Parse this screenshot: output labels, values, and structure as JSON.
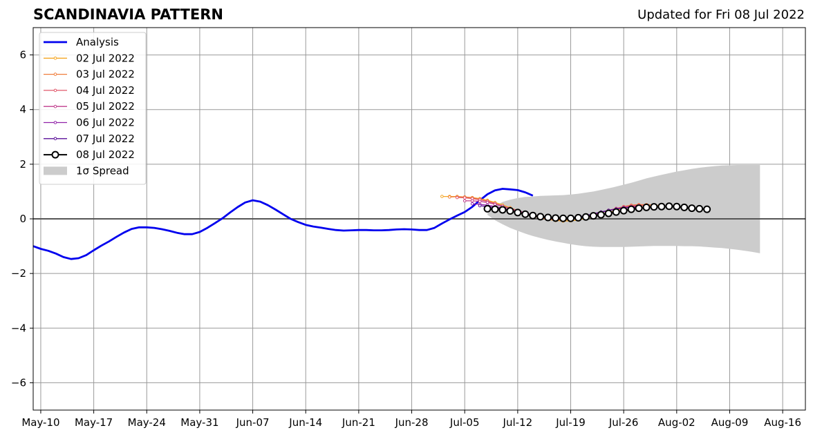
{
  "header": {
    "title": "SCANDINAVIA PATTERN",
    "subtitle": "Updated for Fri 08 Jul 2022"
  },
  "colors": {
    "analysis": "#0000ee",
    "spread": "#cccccc",
    "zero_line": "#555555",
    "grid": "#999999"
  },
  "chart_data": {
    "type": "line",
    "ylim": [
      -7,
      7
    ],
    "xlim": [
      "2022-05-09",
      "2022-08-19"
    ],
    "y_ticks": [
      -6,
      -4,
      -2,
      0,
      2,
      4,
      6
    ],
    "y_tick_labels": [
      "−6",
      "−4",
      "−2",
      "0",
      "2",
      "4",
      "6"
    ],
    "x_ticks": [
      "2022-05-10",
      "2022-05-17",
      "2022-05-24",
      "2022-05-31",
      "2022-06-07",
      "2022-06-14",
      "2022-06-21",
      "2022-06-28",
      "2022-07-05",
      "2022-07-12",
      "2022-07-19",
      "2022-07-26",
      "2022-08-02",
      "2022-08-09",
      "2022-08-16"
    ],
    "x_tick_labels": [
      "May-10",
      "May-17",
      "May-24",
      "May-31",
      "Jun-07",
      "Jun-14",
      "Jun-21",
      "Jun-28",
      "Jul-05",
      "Jul-12",
      "Jul-19",
      "Jul-26",
      "Aug-02",
      "Aug-09",
      "Aug-16"
    ],
    "grid": true,
    "legend_position": "top-left",
    "series": [
      {
        "name": "Analysis",
        "color": "#0000ee",
        "start": "2022-05-09",
        "values": [
          -1.0,
          -1.1,
          -1.17,
          -1.27,
          -1.4,
          -1.47,
          -1.44,
          -1.33,
          -1.15,
          -0.98,
          -0.83,
          -0.66,
          -0.5,
          -0.37,
          -0.31,
          -0.31,
          -0.33,
          -0.38,
          -0.44,
          -0.51,
          -0.56,
          -0.56,
          -0.48,
          -0.33,
          -0.16,
          0.02,
          0.23,
          0.43,
          0.6,
          0.68,
          0.63,
          0.5,
          0.34,
          0.17,
          0.0,
          -0.12,
          -0.22,
          -0.28,
          -0.32,
          -0.37,
          -0.41,
          -0.43,
          -0.42,
          -0.41,
          -0.41,
          -0.42,
          -0.42,
          -0.41,
          -0.39,
          -0.38,
          -0.39,
          -0.41,
          -0.41,
          -0.33,
          -0.17,
          -0.02,
          0.12,
          0.25,
          0.44,
          0.68,
          0.9,
          1.04,
          1.1,
          1.08,
          1.05,
          0.97,
          0.85
        ]
      },
      {
        "name": "02 Jul 2022",
        "color": "#f5a623",
        "start": "2022-07-02",
        "values": [
          0.82,
          0.82,
          0.82,
          0.8,
          0.78,
          0.74,
          0.68,
          0.6,
          0.51,
          0.41,
          0.3,
          0.19,
          0.1,
          0.03,
          -0.02,
          -0.06,
          -0.08,
          -0.07,
          -0.04,
          0.02,
          0.08,
          0.15,
          0.23,
          0.31,
          0.38,
          0.44,
          0.48,
          0.5,
          0.5,
          0.48
        ]
      },
      {
        "name": "03 Jul 2022",
        "color": "#f07c3a",
        "start": "2022-07-03",
        "values": [
          0.8,
          0.81,
          0.8,
          0.77,
          0.72,
          0.65,
          0.56,
          0.46,
          0.36,
          0.26,
          0.17,
          0.09,
          0.03,
          -0.02,
          -0.04,
          -0.04,
          -0.02,
          0.02,
          0.08,
          0.15,
          0.23,
          0.31,
          0.38,
          0.45,
          0.5,
          0.52,
          0.52,
          0.5
        ]
      },
      {
        "name": "04 Jul 2022",
        "color": "#e0576a",
        "start": "2022-07-04",
        "values": [
          0.78,
          0.77,
          0.74,
          0.7,
          0.64,
          0.56,
          0.47,
          0.38,
          0.29,
          0.21,
          0.13,
          0.07,
          0.02,
          -0.01,
          -0.01,
          0.01,
          0.05,
          0.1,
          0.17,
          0.24,
          0.31,
          0.38,
          0.44,
          0.48,
          0.5,
          0.49
        ]
      },
      {
        "name": "05 Jul 2022",
        "color": "#c03c8c",
        "start": "2022-07-05",
        "values": [
          0.66,
          0.66,
          0.64,
          0.6,
          0.53,
          0.46,
          0.38,
          0.3,
          0.22,
          0.15,
          0.09,
          0.04,
          0.01,
          0.0,
          0.02,
          0.06,
          0.11,
          0.17,
          0.24,
          0.31,
          0.37,
          0.42,
          0.45,
          0.46
        ]
      },
      {
        "name": "06 Jul 2022",
        "color": "#9020a8",
        "start": "2022-07-06",
        "values": [
          0.55,
          0.53,
          0.5,
          0.45,
          0.39,
          0.32,
          0.25,
          0.18,
          0.12,
          0.07,
          0.03,
          0.01,
          0.01,
          0.03,
          0.07,
          0.12,
          0.18,
          0.25,
          0.31,
          0.36,
          0.4,
          0.42,
          0.43
        ]
      },
      {
        "name": "07 Jul 2022",
        "color": "#5a0e98",
        "start": "2022-07-07",
        "values": [
          0.48,
          0.45,
          0.41,
          0.36,
          0.3,
          0.24,
          0.18,
          0.12,
          0.07,
          0.03,
          0.01,
          0.01,
          0.03,
          0.07,
          0.12,
          0.18,
          0.25,
          0.31,
          0.36,
          0.4,
          0.42,
          0.42
        ]
      },
      {
        "name": "08 Jul 2022",
        "color": "#000000",
        "start": "2022-07-08",
        "values": [
          0.37,
          0.35,
          0.33,
          0.29,
          0.23,
          0.17,
          0.12,
          0.08,
          0.05,
          0.03,
          0.02,
          0.02,
          0.04,
          0.07,
          0.11,
          0.15,
          0.2,
          0.25,
          0.3,
          0.35,
          0.39,
          0.42,
          0.44,
          0.45,
          0.46,
          0.45,
          0.42,
          0.39,
          0.37,
          0.35
        ]
      }
    ],
    "spread": {
      "name": "1σ Spread",
      "start": "2022-07-08",
      "upper": [
        0.2,
        0.47,
        0.62,
        0.7,
        0.76,
        0.8,
        0.82,
        0.84,
        0.85,
        0.86,
        0.87,
        0.89,
        0.92,
        0.96,
        1.0,
        1.06,
        1.12,
        1.18,
        1.25,
        1.32,
        1.4,
        1.48,
        1.55,
        1.61,
        1.67,
        1.73,
        1.78,
        1.83,
        1.87,
        1.9,
        1.93,
        1.95,
        1.96,
        1.97,
        1.97,
        1.97,
        1.97
      ],
      "lower": [
        0.15,
        -0.05,
        -0.2,
        -0.33,
        -0.44,
        -0.54,
        -0.63,
        -0.7,
        -0.77,
        -0.83,
        -0.88,
        -0.93,
        -0.97,
        -1.0,
        -1.02,
        -1.03,
        -1.03,
        -1.03,
        -1.03,
        -1.02,
        -1.01,
        -1.0,
        -0.99,
        -0.99,
        -0.99,
        -0.99,
        -1.0,
        -1.0,
        -1.01,
        -1.03,
        -1.05,
        -1.07,
        -1.1,
        -1.13,
        -1.17,
        -1.21,
        -1.26
      ]
    },
    "legend": [
      "Analysis",
      "02 Jul 2022",
      "03 Jul 2022",
      "04 Jul 2022",
      "05 Jul 2022",
      "06 Jul 2022",
      "07 Jul 2022",
      "08 Jul 2022",
      "1σ Spread"
    ]
  }
}
